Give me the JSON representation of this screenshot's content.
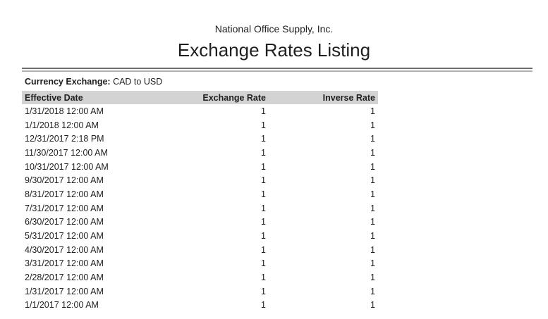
{
  "report": {
    "company": "National Office Supply, Inc.",
    "title": "Exchange Rates Listing",
    "filter_label": "Currency Exchange:",
    "filter_value": "CAD to USD"
  },
  "table": {
    "columns": [
      "Effective Date",
      "Exchange Rate",
      "Inverse Rate"
    ],
    "rows": [
      [
        "1/31/2018 12:00 AM",
        "1",
        "1"
      ],
      [
        "1/1/2018 12:00 AM",
        "1",
        "1"
      ],
      [
        "12/31/2017 2:18 PM",
        "1",
        "1"
      ],
      [
        "11/30/2017 12:00 AM",
        "1",
        "1"
      ],
      [
        "10/31/2017 12:00 AM",
        "1",
        "1"
      ],
      [
        "9/30/2017 12:00 AM",
        "1",
        "1"
      ],
      [
        "8/31/2017 12:00 AM",
        "1",
        "1"
      ],
      [
        "7/31/2017 12:00 AM",
        "1",
        "1"
      ],
      [
        "6/30/2017 12:00 AM",
        "1",
        "1"
      ],
      [
        "5/31/2017 12:00 AM",
        "1",
        "1"
      ],
      [
        "4/30/2017 12:00 AM",
        "1",
        "1"
      ],
      [
        "3/31/2017 12:00 AM",
        "1",
        "1"
      ],
      [
        "2/28/2017 12:00 AM",
        "1",
        "1"
      ],
      [
        "1/31/2017 12:00 AM",
        "1",
        "1"
      ],
      [
        "1/1/2017 12:00 AM",
        "1",
        "1"
      ]
    ]
  },
  "colors": {
    "header_bg": "#d3d3d3",
    "text": "#1f1f1f",
    "rule_dark": "#6e6e6e",
    "rule_light": "#b2b2b2"
  }
}
